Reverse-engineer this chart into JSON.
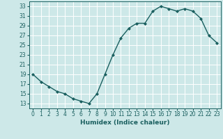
{
  "x": [
    0,
    1,
    2,
    3,
    4,
    5,
    6,
    7,
    8,
    9,
    10,
    11,
    12,
    13,
    14,
    15,
    16,
    17,
    18,
    19,
    20,
    21,
    22,
    23
  ],
  "y": [
    19.0,
    17.5,
    16.5,
    15.5,
    15.0,
    14.0,
    13.5,
    13.0,
    15.0,
    19.0,
    23.0,
    26.5,
    28.5,
    29.5,
    29.5,
    32.0,
    33.0,
    32.5,
    32.0,
    32.5,
    32.0,
    30.5,
    27.0,
    25.5
  ],
  "line_color": "#1a5f5f",
  "marker": "D",
  "marker_size": 2.0,
  "linewidth": 1.0,
  "xlabel": "Humidex (Indice chaleur)",
  "xlim": [
    -0.5,
    23.5
  ],
  "ylim": [
    12,
    34
  ],
  "yticks": [
    13,
    15,
    17,
    19,
    21,
    23,
    25,
    27,
    29,
    31,
    33
  ],
  "xticks": [
    0,
    1,
    2,
    3,
    4,
    5,
    6,
    7,
    8,
    9,
    10,
    11,
    12,
    13,
    14,
    15,
    16,
    17,
    18,
    19,
    20,
    21,
    22,
    23
  ],
  "bg_color": "#cde8e8",
  "grid_color": "#b8d8d8",
  "line_grid_color": "#ffffff",
  "tick_color": "#1a5f5f",
  "label_color": "#1a5f5f",
  "xlabel_fontsize": 6.5,
  "tick_fontsize": 5.5
}
